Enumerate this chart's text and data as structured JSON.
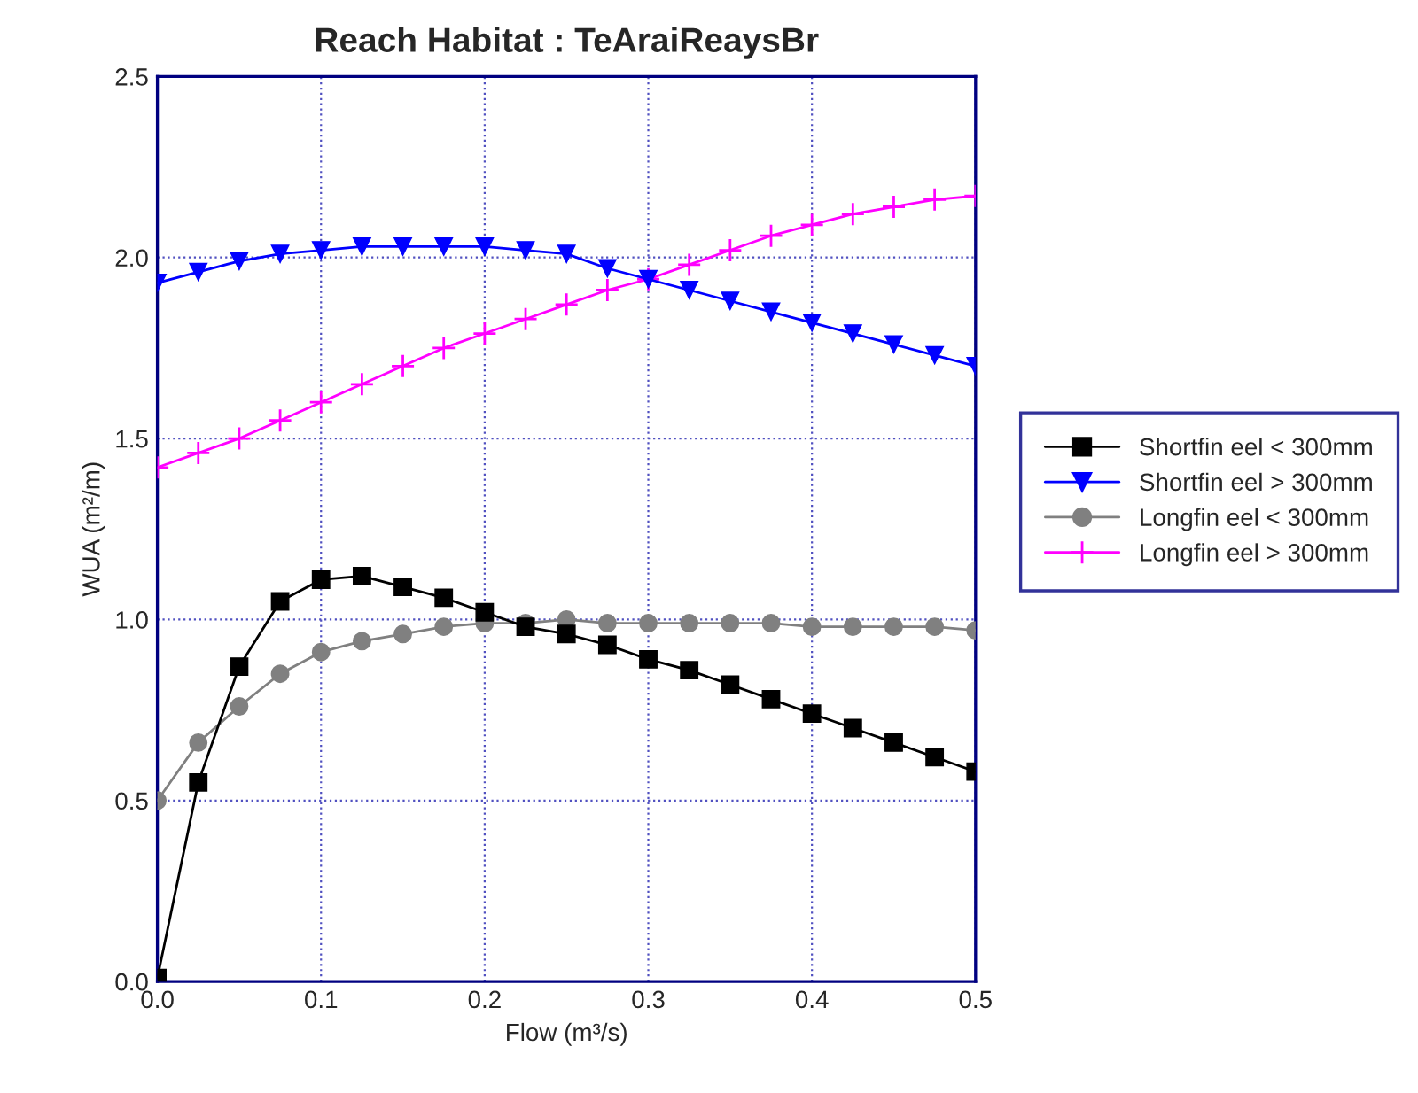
{
  "chart_data": {
    "type": "line",
    "title": "Reach Habitat : TeAraiReaysBr",
    "xlabel": "Flow (m³/s)",
    "ylabel": "WUA (m²/m)",
    "x": [
      0,
      0.025,
      0.05,
      0.075,
      0.1,
      0.125,
      0.15,
      0.175,
      0.2,
      0.225,
      0.25,
      0.275,
      0.3,
      0.325,
      0.35,
      0.375,
      0.4,
      0.425,
      0.45,
      0.475,
      0.5
    ],
    "series": [
      {
        "name": "Shortfin eel < 300mm",
        "color": "#000000",
        "marker": "square",
        "values": [
          0.01,
          0.55,
          0.87,
          1.05,
          1.11,
          1.12,
          1.09,
          1.06,
          1.02,
          0.98,
          0.96,
          0.93,
          0.89,
          0.86,
          0.82,
          0.78,
          0.74,
          0.7,
          0.66,
          0.62,
          0.58
        ]
      },
      {
        "name": "Shortfin eel > 300mm",
        "color": "#0000ff",
        "marker": "triangle",
        "values": [
          1.93,
          1.96,
          1.99,
          2.01,
          2.02,
          2.03,
          2.03,
          2.03,
          2.03,
          2.02,
          2.01,
          1.97,
          1.94,
          1.91,
          1.88,
          1.85,
          1.82,
          1.79,
          1.76,
          1.73,
          1.7
        ]
      },
      {
        "name": "Longfin eel < 300mm",
        "color": "#808080",
        "marker": "circle",
        "values": [
          0.5,
          0.66,
          0.76,
          0.85,
          0.91,
          0.94,
          0.96,
          0.98,
          0.99,
          0.99,
          1.0,
          0.99,
          0.99,
          0.99,
          0.99,
          0.99,
          0.98,
          0.98,
          0.98,
          0.98,
          0.97
        ]
      },
      {
        "name": "Longfin eel > 300mm",
        "color": "#ff00ff",
        "marker": "cross",
        "values": [
          1.42,
          1.46,
          1.5,
          1.55,
          1.6,
          1.65,
          1.7,
          1.75,
          1.79,
          1.83,
          1.87,
          1.91,
          1.94,
          1.98,
          2.02,
          2.06,
          2.09,
          2.12,
          2.14,
          2.16,
          2.17
        ]
      }
    ],
    "xlim": [
      0,
      0.5
    ],
    "ylim": [
      0,
      2.5
    ],
    "xticks": [
      {
        "value": 0,
        "label": "0.0"
      },
      0.1,
      0.2,
      0.3,
      0.4,
      0.5
    ],
    "yticks": [
      {
        "value": 0,
        "label": "0.0"
      },
      0.5,
      {
        "value": 1,
        "label": "1.0"
      },
      1.5,
      {
        "value": 2,
        "label": "2.0"
      },
      2.5
    ],
    "grid": true,
    "legend": "right",
    "line_style": "solid"
  }
}
